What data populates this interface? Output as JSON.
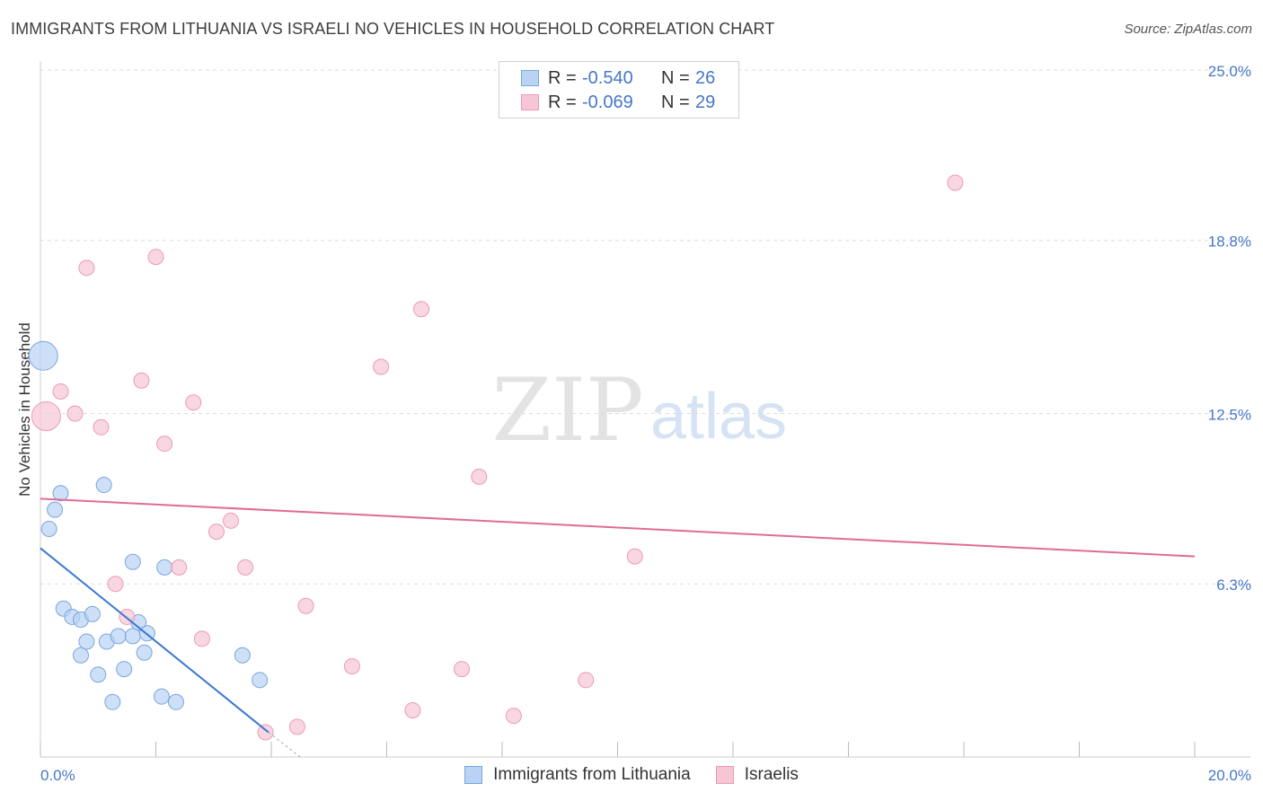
{
  "title": "IMMIGRANTS FROM LITHUANIA VS ISRAELI NO VEHICLES IN HOUSEHOLD CORRELATION CHART",
  "source": "Source: ZipAtlas.com",
  "watermark": {
    "zip": "ZIP",
    "atlas": "atlas"
  },
  "colors": {
    "blue_fill": "#b8d3f3",
    "blue_stroke": "#7aa6de",
    "blue_line": "#3a78d4",
    "pink_fill": "#f7c6d5",
    "pink_stroke": "#ec9ab4",
    "pink_line": "#e06c95",
    "tick_label": "#4477c9",
    "grid": "#dddddd"
  },
  "legend": {
    "rows": [
      {
        "r_label": "R =",
        "r_value": "-0.540",
        "n_label": "N =",
        "n_value": "26"
      },
      {
        "r_label": "R =",
        "r_value": "-0.069",
        "n_label": "N =",
        "n_value": "29"
      }
    ]
  },
  "bottom_legend": [
    "Immigrants from Lithuania",
    "Israelis"
  ],
  "chart_data": {
    "type": "scatter",
    "title": "IMMIGRANTS FROM LITHUANIA VS ISRAELI NO VEHICLES IN HOUSEHOLD CORRELATION CHART",
    "xlabel": "",
    "ylabel": "No Vehicles in Household",
    "xlim": [
      0,
      20
    ],
    "ylim": [
      0,
      25
    ],
    "x_tick_labels": [
      "0.0%",
      "20.0%"
    ],
    "y_ticks": [
      6.3,
      12.5,
      18.8,
      25.0
    ],
    "y_tick_labels": [
      "6.3%",
      "12.5%",
      "18.8%",
      "25.0%"
    ],
    "grid": true,
    "series": [
      {
        "name": "Immigrants from Lithuania",
        "points": [
          {
            "x": 0.05,
            "y": 14.6,
            "s": "large"
          },
          {
            "x": 0.35,
            "y": 9.6
          },
          {
            "x": 0.25,
            "y": 9.0
          },
          {
            "x": 0.15,
            "y": 8.3
          },
          {
            "x": 1.1,
            "y": 9.9
          },
          {
            "x": 1.6,
            "y": 7.1
          },
          {
            "x": 2.15,
            "y": 6.9
          },
          {
            "x": 0.4,
            "y": 5.4
          },
          {
            "x": 0.55,
            "y": 5.1
          },
          {
            "x": 0.7,
            "y": 5.0
          },
          {
            "x": 0.9,
            "y": 5.2
          },
          {
            "x": 0.8,
            "y": 4.2
          },
          {
            "x": 0.7,
            "y": 3.7
          },
          {
            "x": 1.15,
            "y": 4.2
          },
          {
            "x": 1.35,
            "y": 4.4
          },
          {
            "x": 1.6,
            "y": 4.4
          },
          {
            "x": 1.7,
            "y": 4.9
          },
          {
            "x": 1.85,
            "y": 4.5
          },
          {
            "x": 1.8,
            "y": 3.8
          },
          {
            "x": 1.0,
            "y": 3.0
          },
          {
            "x": 1.45,
            "y": 3.2
          },
          {
            "x": 1.25,
            "y": 2.0
          },
          {
            "x": 2.1,
            "y": 2.2
          },
          {
            "x": 2.35,
            "y": 2.0
          },
          {
            "x": 3.5,
            "y": 3.7
          },
          {
            "x": 3.8,
            "y": 2.8
          }
        ],
        "trend": {
          "x1": 0,
          "y1": 7.6,
          "x2": 3.95,
          "y2": 0.9,
          "dash_x2": 4.5,
          "dash_y2": 0.0
        }
      },
      {
        "name": "Israelis",
        "points": [
          {
            "x": 0.1,
            "y": 12.4,
            "s": "large"
          },
          {
            "x": 0.35,
            "y": 13.3
          },
          {
            "x": 0.6,
            "y": 12.5
          },
          {
            "x": 1.05,
            "y": 12.0
          },
          {
            "x": 0.8,
            "y": 17.8
          },
          {
            "x": 2.0,
            "y": 18.2
          },
          {
            "x": 1.75,
            "y": 13.7
          },
          {
            "x": 2.65,
            "y": 12.9
          },
          {
            "x": 2.15,
            "y": 11.4
          },
          {
            "x": 3.3,
            "y": 8.6
          },
          {
            "x": 3.05,
            "y": 8.2
          },
          {
            "x": 1.3,
            "y": 6.3
          },
          {
            "x": 2.4,
            "y": 6.9
          },
          {
            "x": 3.55,
            "y": 6.9
          },
          {
            "x": 1.5,
            "y": 5.1
          },
          {
            "x": 2.8,
            "y": 4.3
          },
          {
            "x": 4.6,
            "y": 5.5
          },
          {
            "x": 5.4,
            "y": 3.3
          },
          {
            "x": 3.9,
            "y": 0.9
          },
          {
            "x": 4.45,
            "y": 1.1
          },
          {
            "x": 6.6,
            "y": 16.3
          },
          {
            "x": 5.9,
            "y": 14.2
          },
          {
            "x": 7.6,
            "y": 10.2
          },
          {
            "x": 7.3,
            "y": 3.2
          },
          {
            "x": 6.45,
            "y": 1.7
          },
          {
            "x": 8.2,
            "y": 1.5
          },
          {
            "x": 9.45,
            "y": 2.8
          },
          {
            "x": 10.3,
            "y": 7.3
          },
          {
            "x": 15.85,
            "y": 20.9
          }
        ],
        "trend": {
          "x1": 0,
          "y1": 9.4,
          "x2": 20,
          "y2": 7.3
        }
      }
    ]
  }
}
